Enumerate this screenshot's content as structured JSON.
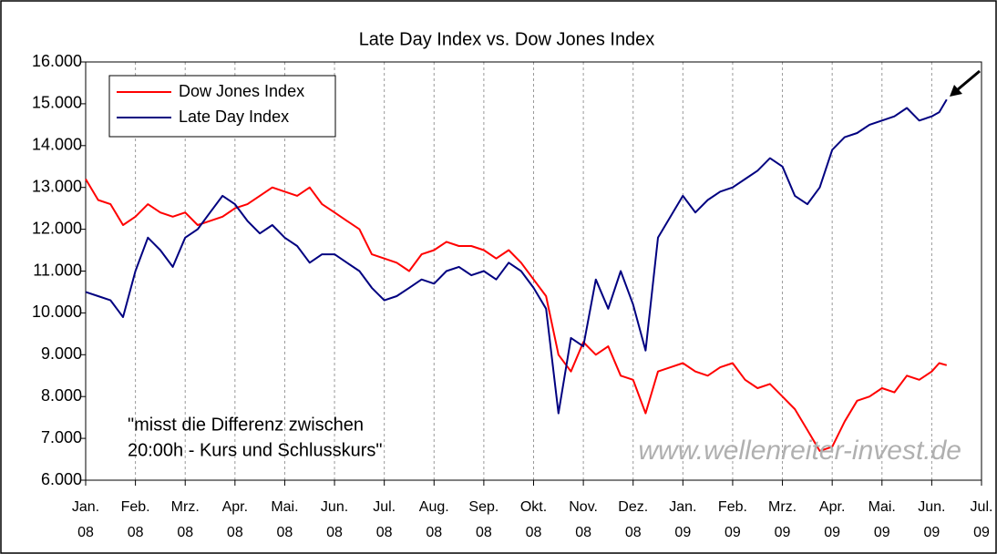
{
  "chart_data": {
    "type": "line",
    "title": "Late Day Index vs. Dow Jones Index",
    "annotations": [
      "\"misst die Differenz zwischen",
      "20:00h - Kurs und Schlusskurs\"",
      "www.wellenreiter-invest.de"
    ],
    "x": [
      0,
      0.25,
      0.5,
      0.75,
      1,
      1.25,
      1.5,
      1.75,
      2,
      2.25,
      2.5,
      2.75,
      3,
      3.25,
      3.5,
      3.75,
      4,
      4.25,
      4.5,
      4.75,
      5,
      5.25,
      5.5,
      5.75,
      6,
      6.25,
      6.5,
      6.75,
      7,
      7.25,
      7.5,
      7.75,
      8,
      8.25,
      8.5,
      8.75,
      9,
      9.25,
      9.5,
      9.75,
      10,
      10.25,
      10.5,
      10.75,
      11,
      11.25,
      11.5,
      11.75,
      12,
      12.25,
      12.5,
      12.75,
      13,
      13.25,
      13.5,
      13.75,
      14,
      14.25,
      14.5,
      14.75,
      15,
      15.25,
      15.5,
      15.75,
      16,
      16.25,
      16.5,
      16.75,
      17,
      17.15,
      17.3
    ],
    "series": [
      {
        "name": "Dow Jones Index",
        "color": "#ff0000",
        "values": [
          13200,
          12700,
          12600,
          12100,
          12300,
          12600,
          12400,
          12300,
          12400,
          12100,
          12200,
          12300,
          12500,
          12600,
          12800,
          13000,
          12900,
          12800,
          13000,
          12600,
          12400,
          12200,
          12000,
          11400,
          11300,
          11200,
          11000,
          11400,
          11500,
          11700,
          11600,
          11600,
          11500,
          11300,
          11500,
          11200,
          10800,
          10400,
          9000,
          8600,
          9300,
          9000,
          9200,
          8500,
          8400,
          7600,
          8600,
          8700,
          8800,
          8600,
          8500,
          8700,
          8800,
          8400,
          8200,
          8300,
          8000,
          7700,
          7200,
          6700,
          6800,
          7400,
          7900,
          8000,
          8200,
          8100,
          8500,
          8400,
          8600,
          8800,
          8750
        ]
      },
      {
        "name": "Late Day Index",
        "color": "#000080",
        "values": [
          10500,
          10400,
          10300,
          9900,
          11000,
          11800,
          11500,
          11100,
          11800,
          12000,
          12400,
          12800,
          12600,
          12200,
          11900,
          12100,
          11800,
          11600,
          11200,
          11400,
          11400,
          11200,
          11000,
          10600,
          10300,
          10400,
          10600,
          10800,
          10700,
          11000,
          11100,
          10900,
          11000,
          10800,
          11200,
          11000,
          10600,
          10100,
          7600,
          9400,
          9200,
          10800,
          10100,
          11000,
          10200,
          9100,
          11800,
          12300,
          12800,
          12400,
          12700,
          12900,
          13000,
          13200,
          13400,
          13700,
          13500,
          12800,
          12600,
          13000,
          13900,
          14200,
          14300,
          14500,
          14600,
          14700,
          14900,
          14600,
          14700,
          14800,
          15100
        ]
      }
    ],
    "xlim": [
      0,
      18
    ],
    "xticks": [
      {
        "value": 0,
        "label": "Jan. 08"
      },
      {
        "value": 1,
        "label": "Feb. 08"
      },
      {
        "value": 2,
        "label": "Mrz. 08"
      },
      {
        "value": 3,
        "label": "Apr. 08"
      },
      {
        "value": 4,
        "label": "Mai. 08"
      },
      {
        "value": 5,
        "label": "Jun. 08"
      },
      {
        "value": 6,
        "label": "Jul. 08"
      },
      {
        "value": 7,
        "label": "Aug. 08"
      },
      {
        "value": 8,
        "label": "Sep. 08"
      },
      {
        "value": 9,
        "label": "Okt. 08"
      },
      {
        "value": 10,
        "label": "Nov. 08"
      },
      {
        "value": 11,
        "label": "Dez. 08"
      },
      {
        "value": 12,
        "label": "Jan. 09"
      },
      {
        "value": 13,
        "label": "Feb. 09"
      },
      {
        "value": 14,
        "label": "Mrz. 09"
      },
      {
        "value": 15,
        "label": "Apr. 09"
      },
      {
        "value": 16,
        "label": "Mai. 09"
      },
      {
        "value": 17,
        "label": "Jun. 09"
      },
      {
        "value": 18,
        "label": "Jul. 09"
      }
    ],
    "ylim": [
      6000,
      16000
    ],
    "yticks": [
      {
        "value": 6000,
        "label": "6.000"
      },
      {
        "value": 7000,
        "label": "7.000"
      },
      {
        "value": 8000,
        "label": "8.000"
      },
      {
        "value": 9000,
        "label": "9.000"
      },
      {
        "value": 10000,
        "label": "10.000"
      },
      {
        "value": 11000,
        "label": "11.000"
      },
      {
        "value": 12000,
        "label": "12.000"
      },
      {
        "value": 13000,
        "label": "13.000"
      },
      {
        "value": 14000,
        "label": "14.000"
      },
      {
        "value": 15000,
        "label": "15.000"
      },
      {
        "value": 16000,
        "label": "16.000"
      }
    ],
    "grid": "x",
    "legend": "upper left"
  }
}
